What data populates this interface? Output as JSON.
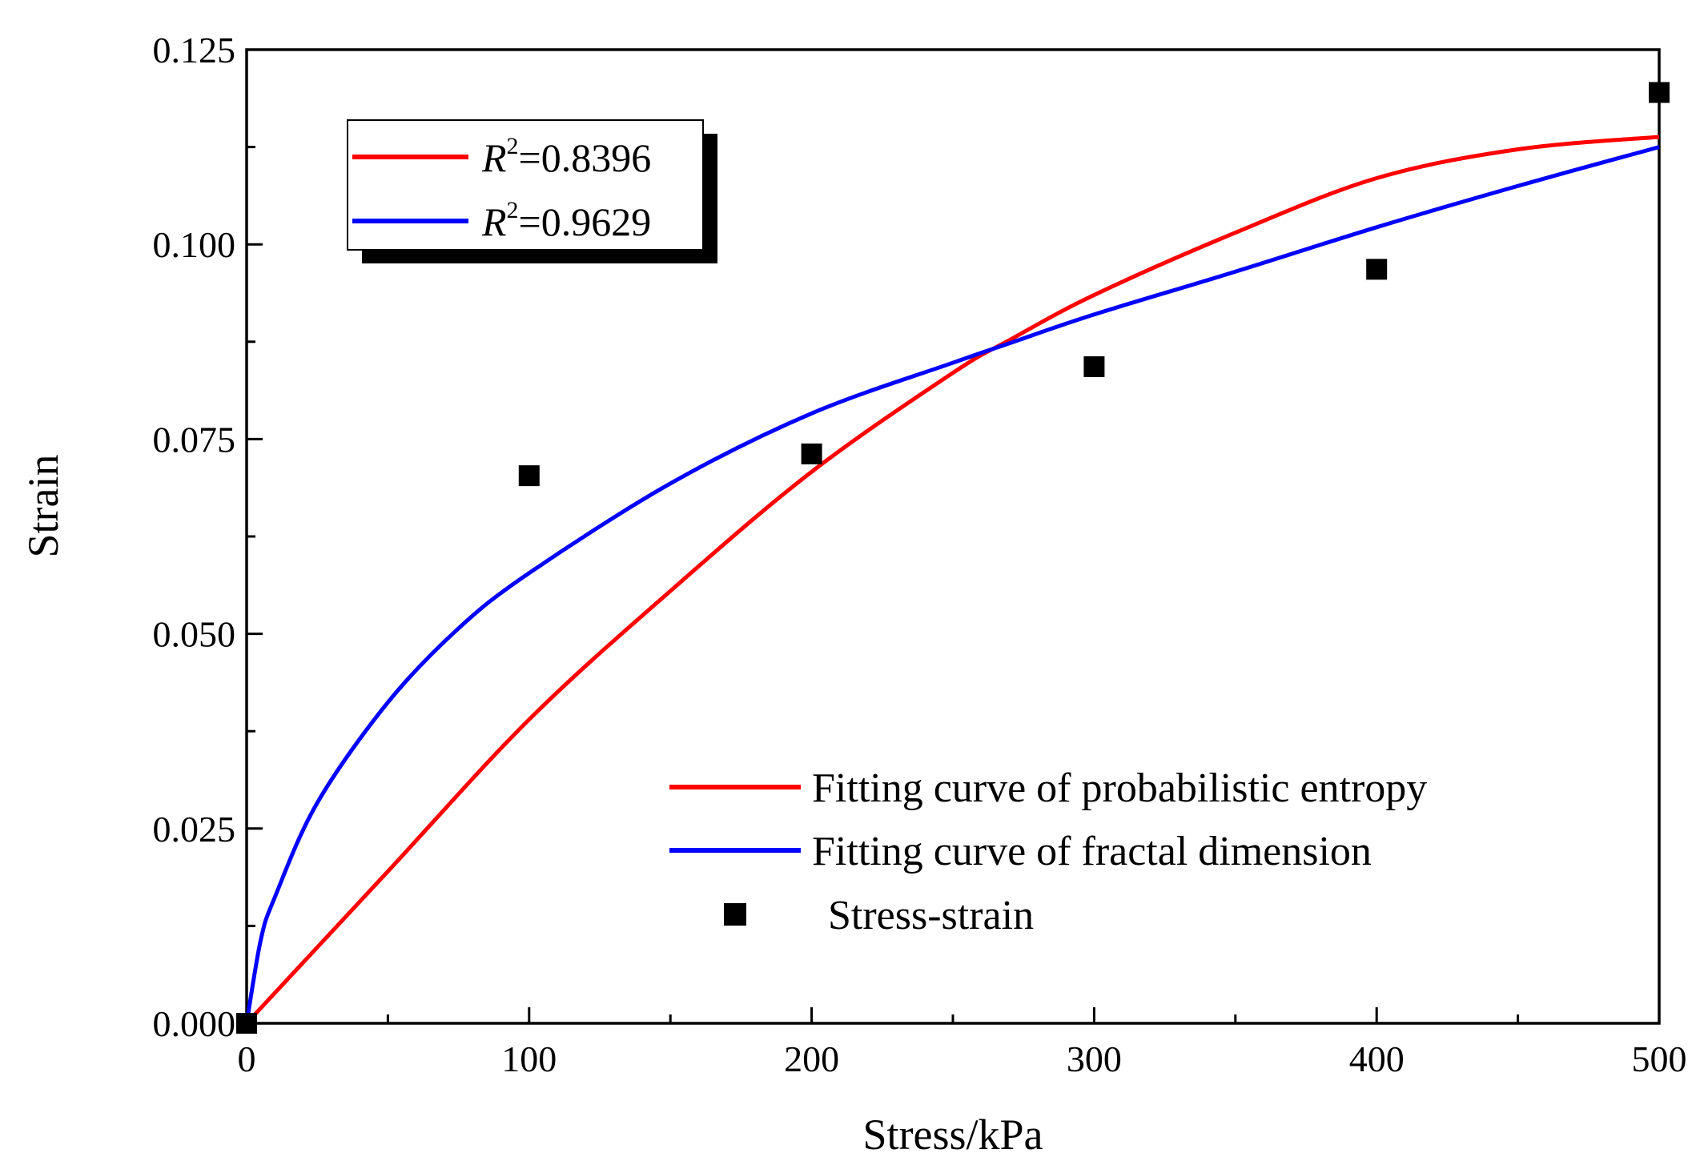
{
  "chart_data": {
    "type": "scatter",
    "title": "",
    "xlabel": "Stress/kPa",
    "ylabel": "Strain",
    "xlim": [
      0,
      500
    ],
    "ylim": [
      0,
      0.125
    ],
    "xticks": [
      "0",
      "100",
      "200",
      "300",
      "400",
      "500"
    ],
    "yticks": [
      "0.000",
      "0.025",
      "0.050",
      "0.075",
      "0.100",
      "0.125"
    ],
    "x_tick_values": [
      0,
      100,
      200,
      300,
      400,
      500
    ],
    "y_tick_values": [
      0,
      0.025,
      0.05,
      0.075,
      0.1,
      0.125
    ],
    "grid": false,
    "points": {
      "name": "Stress-strain",
      "color": "#000000",
      "x": [
        0,
        100,
        200,
        300,
        400,
        500
      ],
      "y": [
        0.0,
        0.0703,
        0.0731,
        0.0843,
        0.0968,
        0.1195
      ]
    },
    "series": [
      {
        "name": "Fitting curve of probabilistic entropy",
        "color": "#ff0000",
        "x": [
          0,
          50,
          100,
          150,
          200,
          250,
          270,
          300,
          350,
          400,
          450,
          500
        ],
        "y": [
          0.0,
          0.0195,
          0.039,
          0.0555,
          0.0708,
          0.0835,
          0.0877,
          0.0935,
          0.1015,
          0.1085,
          0.1122,
          0.1138
        ]
      },
      {
        "name": "Fitting curve of fractal dimension",
        "color": "#0000ff",
        "x": [
          0,
          5,
          10,
          25,
          50,
          75,
          100,
          150,
          200,
          250,
          270,
          300,
          350,
          400,
          450,
          500
        ],
        "y": [
          0.0,
          0.0107,
          0.0162,
          0.0283,
          0.0412,
          0.0507,
          0.0578,
          0.0693,
          0.0783,
          0.0848,
          0.0873,
          0.091,
          0.0965,
          0.1022,
          0.1075,
          0.1125
        ]
      }
    ],
    "r2_legend": [
      {
        "label": "R",
        "sup": "2",
        "value": "=0.8396",
        "color": "#ff0000"
      },
      {
        "label": "R",
        "sup": "2",
        "value": "=0.9629",
        "color": "#0000ff"
      }
    ],
    "legend": [
      "Fitting curve of probabilistic entropy",
      "Fitting curve of fractal dimension",
      "Stress-strain"
    ],
    "legend_position": "bottom-right"
  }
}
